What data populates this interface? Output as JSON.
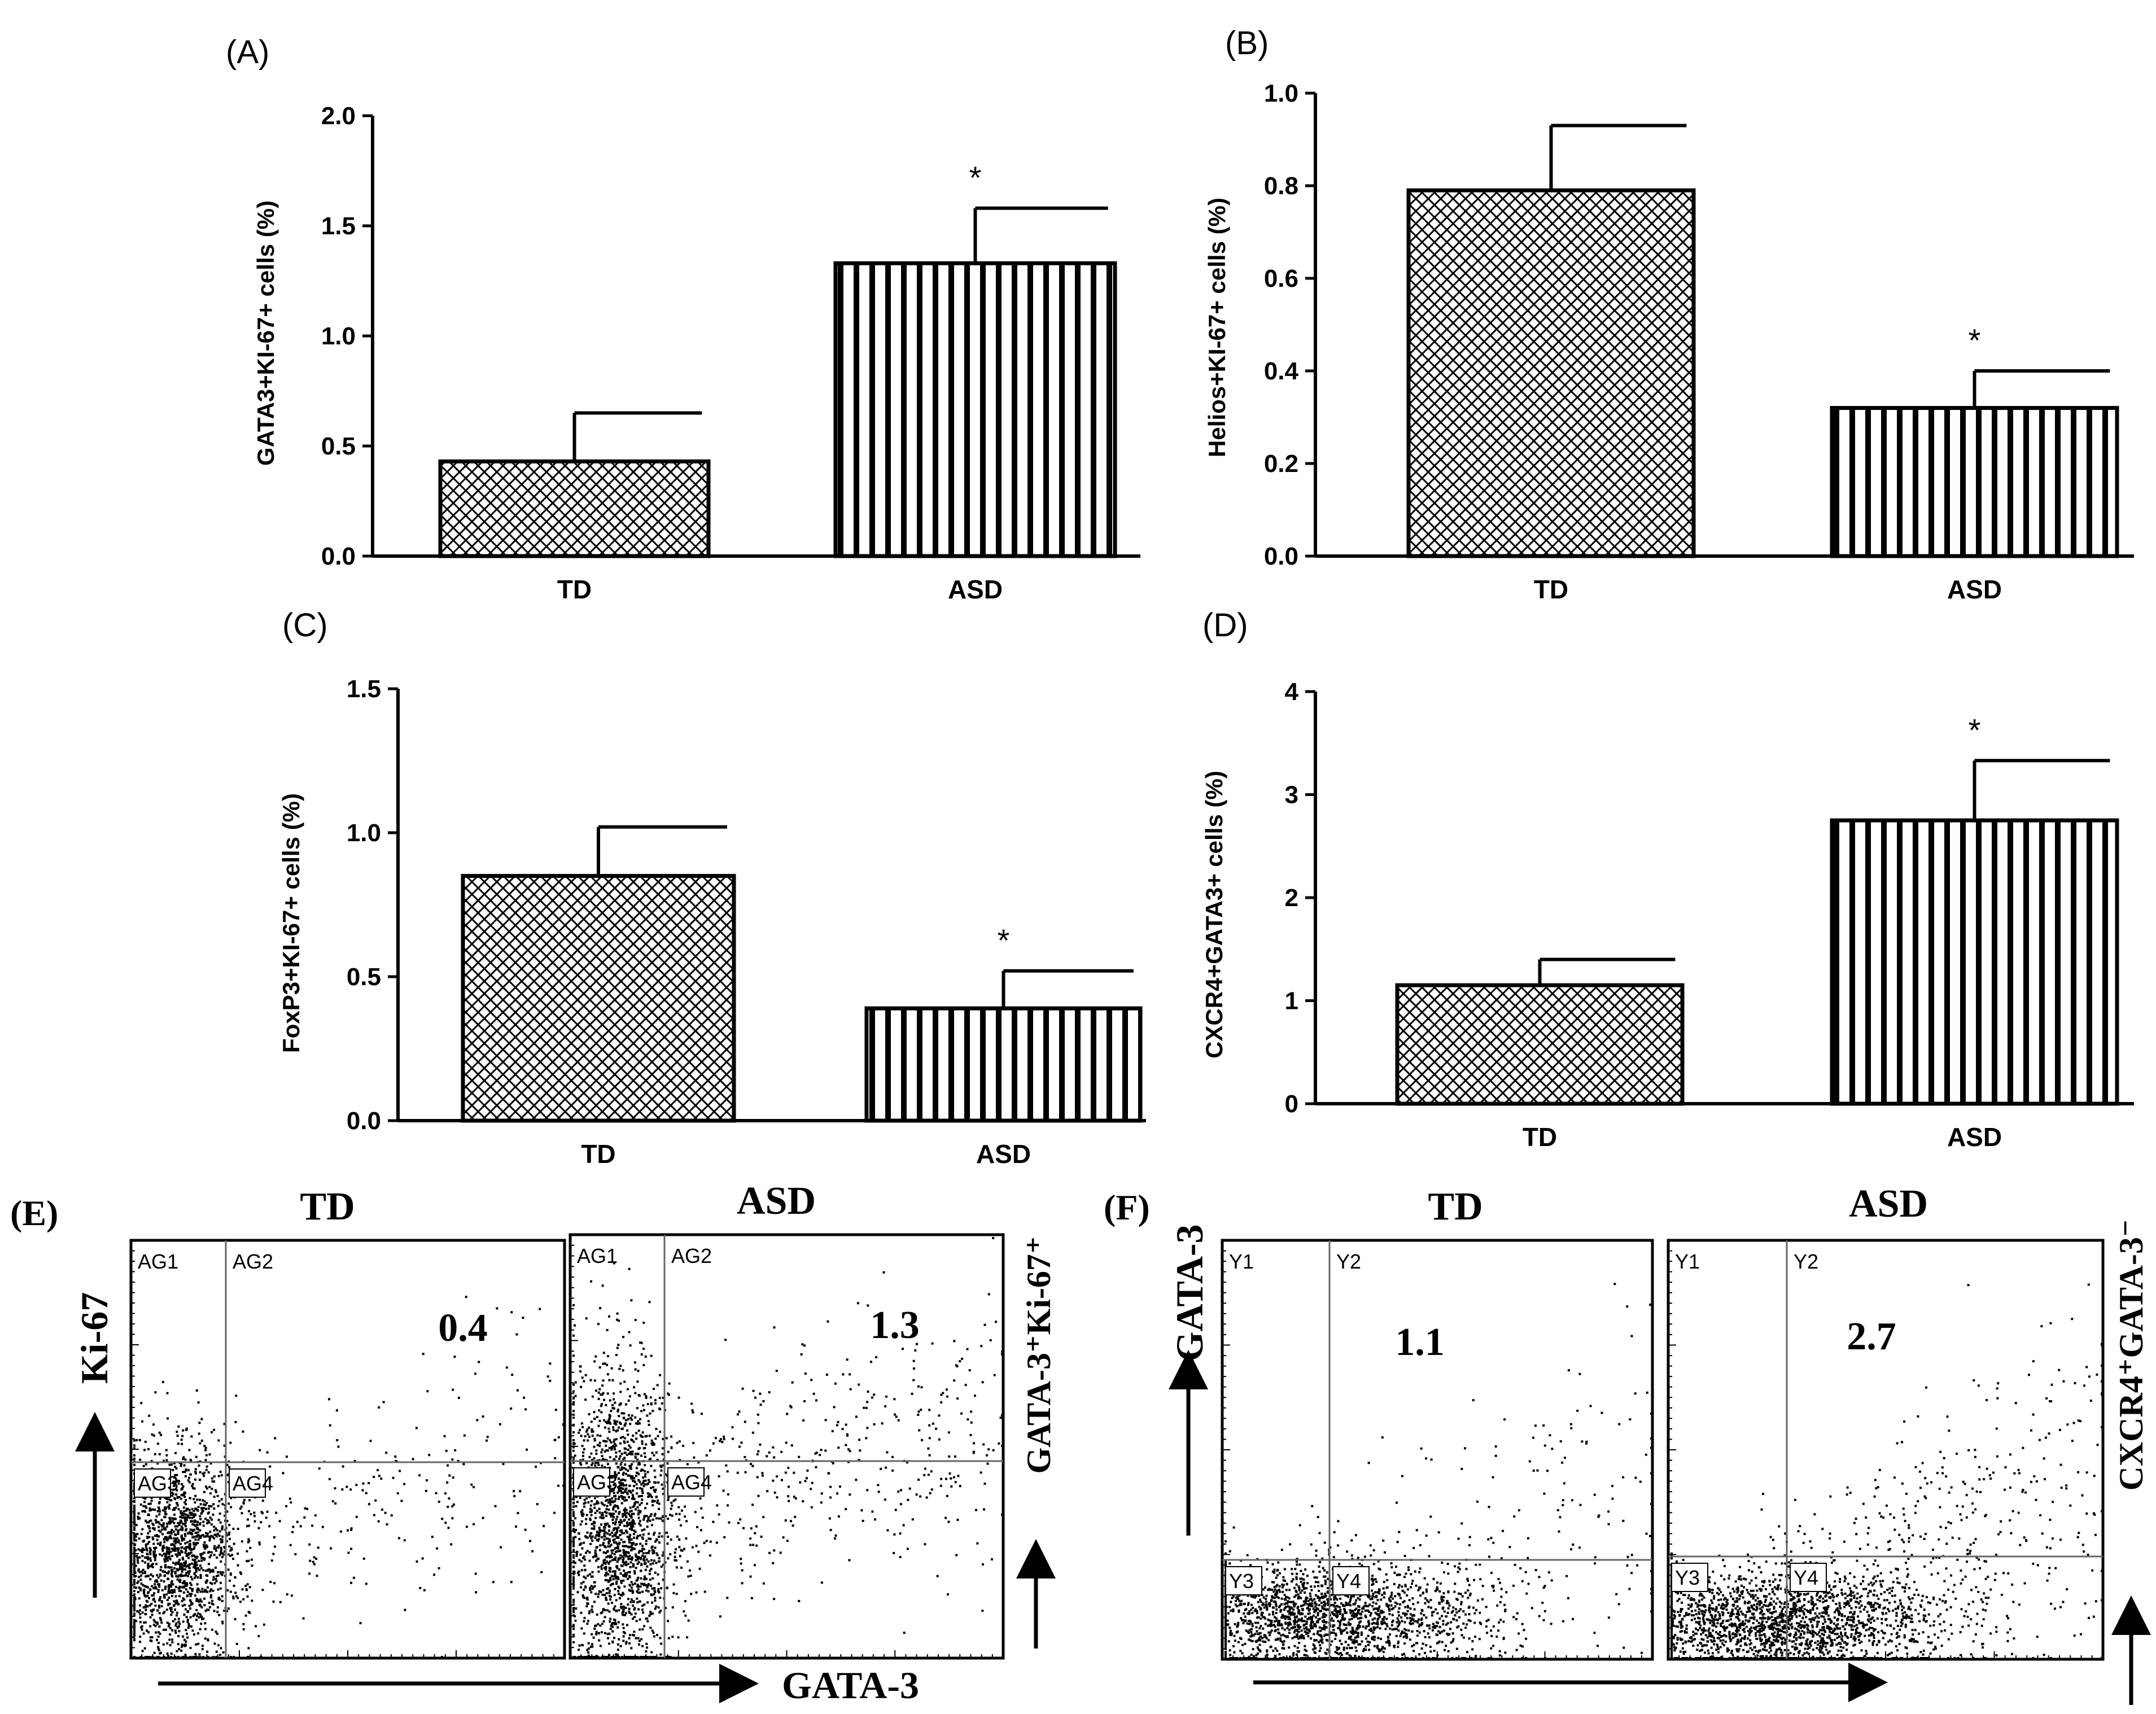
{
  "chart_data": [
    {
      "id": "A",
      "type": "bar",
      "panel_label": "(A)",
      "categories": [
        "TD",
        "ASD"
      ],
      "values": [
        0.43,
        1.33
      ],
      "errors": [
        0.22,
        0.25
      ],
      "significance": [
        "",
        "*"
      ],
      "ylabel": "GATA3+KI-67+ cells (%)",
      "ylim": [
        0,
        2.0
      ],
      "ticks": [
        "0.0",
        "0.5",
        "1.0",
        "1.5",
        "2.0"
      ],
      "patterns": [
        "crosshatch",
        "vertical"
      ]
    },
    {
      "id": "B",
      "type": "bar",
      "panel_label": "(B)",
      "categories": [
        "TD",
        "ASD"
      ],
      "values": [
        0.79,
        0.32
      ],
      "errors": [
        0.14,
        0.08
      ],
      "significance": [
        "",
        "*"
      ],
      "ylabel": "Helios+KI-67+ cells (%)",
      "ylim": [
        0,
        1.0
      ],
      "ticks": [
        "0.0",
        "0.2",
        "0.4",
        "0.6",
        "0.8",
        "1.0"
      ],
      "patterns": [
        "crosshatch",
        "vertical"
      ]
    },
    {
      "id": "C",
      "type": "bar",
      "panel_label": "(C)",
      "categories": [
        "TD",
        "ASD"
      ],
      "values": [
        0.85,
        0.39
      ],
      "errors": [
        0.17,
        0.13
      ],
      "significance": [
        "",
        "*"
      ],
      "ylabel": "FoxP3+KI-67+ cells (%)",
      "ylim": [
        0,
        1.5
      ],
      "ticks": [
        "0.0",
        "0.5",
        "1.0",
        "1.5"
      ],
      "patterns": [
        "crosshatch",
        "vertical"
      ]
    },
    {
      "id": "D",
      "type": "bar",
      "panel_label": "(D)",
      "categories": [
        "TD",
        "ASD"
      ],
      "values": [
        1.15,
        2.75
      ],
      "errors": [
        0.25,
        0.58
      ],
      "significance": [
        "",
        "*"
      ],
      "ylabel": "CXCR4+GATA3+ cells (%)",
      "ylim": [
        0,
        4
      ],
      "ticks": [
        "0",
        "1",
        "2",
        "3",
        "4"
      ],
      "patterns": [
        "crosshatch",
        "vertical"
      ]
    },
    {
      "id": "E",
      "type": "scatter",
      "panel_label": "(E)",
      "y_axis_label": "Ki-67",
      "x_axis_label": "GATA-3",
      "side_label": "GATA-3⁺Ki-67⁺",
      "subplots": [
        {
          "title": "TD",
          "value": "0.4",
          "quadrants": [
            "AG1",
            "AG2",
            "AG3",
            "AG4"
          ]
        },
        {
          "title": "ASD",
          "value": "1.3",
          "quadrants": [
            "AG1",
            "AG2",
            "AG3",
            "AG4"
          ]
        }
      ]
    },
    {
      "id": "F",
      "type": "scatter",
      "panel_label": "(F)",
      "y_axis_label": "GATA-3",
      "x_axis_label": "",
      "side_label": "CXCR4⁺GATA-3⁻",
      "subplots": [
        {
          "title": "TD",
          "value": "1.1",
          "quadrants": [
            "Y1",
            "Y2",
            "Y3",
            "Y4"
          ]
        },
        {
          "title": "ASD",
          "value": "2.7",
          "quadrants": [
            "Y1",
            "Y2",
            "Y3",
            "Y4"
          ]
        }
      ]
    }
  ]
}
